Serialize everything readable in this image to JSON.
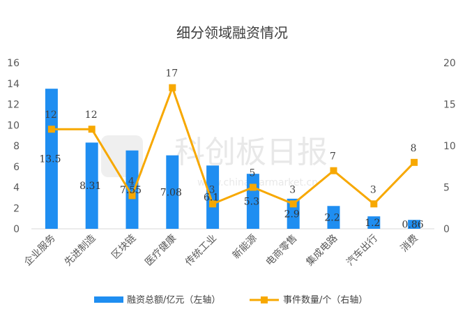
{
  "chart_data": {
    "type": "bar",
    "title": "细分领域融资情况",
    "categories": [
      "企业服务",
      "先进制造",
      "区块链",
      "医疗健康",
      "传统工业",
      "新能源",
      "电商零售",
      "集成电路",
      "汽车出行",
      "消费"
    ],
    "series": [
      {
        "name": "融资总额/亿元（左轴）",
        "type": "bar",
        "axis": "left",
        "color": "#1f8ef1",
        "values": [
          13.5,
          8.31,
          7.55,
          7.08,
          6.1,
          5.3,
          2.9,
          2.2,
          1.2,
          0.86
        ],
        "labels": [
          "13.5",
          "8.31",
          "7.55",
          "7.08",
          "6.1",
          "5.3",
          "2.9",
          "2.2",
          "1.2",
          "0.86"
        ]
      },
      {
        "name": "事件数量/个（右轴）",
        "type": "line",
        "axis": "right",
        "color": "#f7a800",
        "values": [
          12,
          12,
          4,
          17,
          3,
          5,
          3,
          7,
          3,
          8
        ],
        "labels": [
          "12",
          "12",
          "4",
          "17",
          "3",
          "5",
          "3",
          "7",
          "3",
          "8"
        ]
      }
    ],
    "y_left": {
      "min": 0,
      "max": 16,
      "ticks": [
        "0",
        "2",
        "4",
        "6",
        "8",
        "10",
        "12",
        "14",
        "16"
      ]
    },
    "y_right": {
      "min": 0,
      "max": 20,
      "ticks": [
        "0",
        "5",
        "10",
        "15",
        "20"
      ]
    },
    "grid": false,
    "legend_position": "bottom"
  },
  "watermark": {
    "logo_text": "科创板日报",
    "url_text": "www.chinastarmarket.cn"
  }
}
